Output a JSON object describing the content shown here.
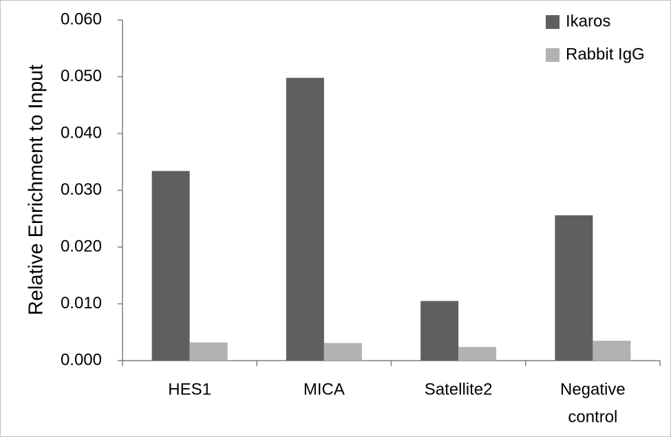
{
  "chart_data": {
    "type": "bar",
    "title": "",
    "xlabel": "",
    "ylabel": "Relative Enrichment to Input",
    "ylim": [
      0,
      0.06
    ],
    "yticks": [
      "0.000",
      "0.010",
      "0.020",
      "0.030",
      "0.040",
      "0.050",
      "0.060"
    ],
    "ytick_values": [
      0,
      0.01,
      0.02,
      0.03,
      0.04,
      0.05,
      0.06
    ],
    "categories": [
      [
        "HES1"
      ],
      [
        "MICA"
      ],
      [
        "Satellite2"
      ],
      [
        "Negative",
        "control"
      ]
    ],
    "series": [
      {
        "name": "Ikaros",
        "color": "#5f5f5f",
        "values": [
          0.0334,
          0.0498,
          0.0105,
          0.0256
        ]
      },
      {
        "name": "Rabbit IgG",
        "color": "#b2b2b2",
        "values": [
          0.0032,
          0.0031,
          0.0024,
          0.0035
        ]
      }
    ],
    "grid": false,
    "legend_position": "top-right",
    "axis_color": "#7f7f7f"
  }
}
